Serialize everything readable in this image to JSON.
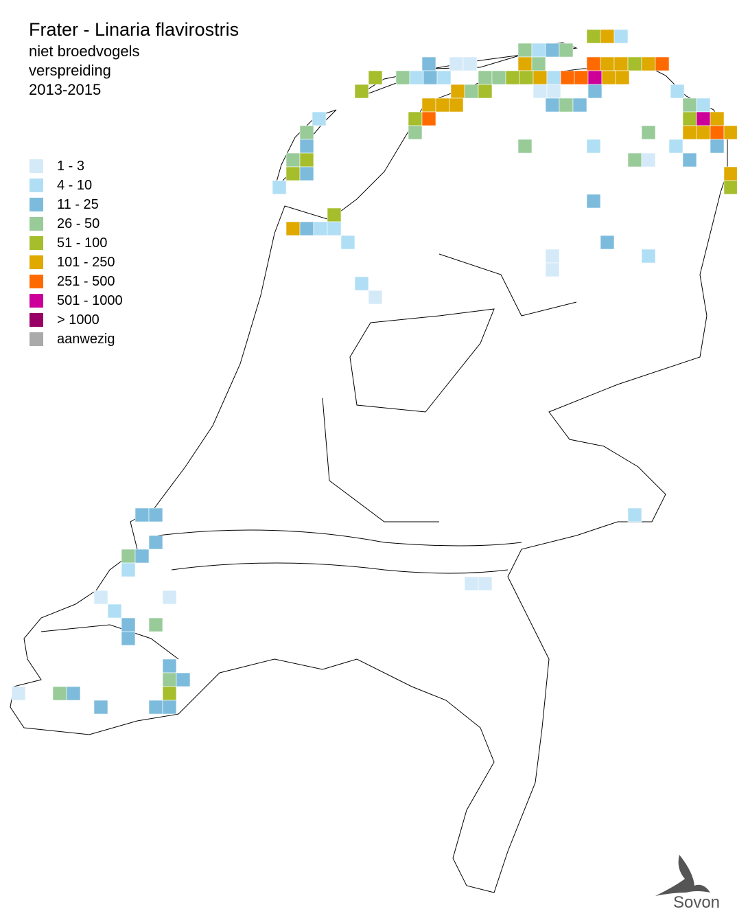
{
  "header": {
    "title": "Frater - Linaria flavirostris",
    "lines": [
      "niet broedvogels",
      "verspreiding",
      "2013-2015"
    ]
  },
  "legend": [
    {
      "label": "1 - 3",
      "color": "#d4eaf8"
    },
    {
      "label": "4 - 10",
      "color": "#b0dff5"
    },
    {
      "label": "11 - 25",
      "color": "#7dbbdc"
    },
    {
      "label": "26 - 50",
      "color": "#98cb98"
    },
    {
      "label": "51 - 100",
      "color": "#a6bd2c"
    },
    {
      "label": "101 - 250",
      "color": "#dfa900"
    },
    {
      "label": "251 - 500",
      "color": "#ff6a00"
    },
    {
      "label": "501 - 1000",
      "color": "#cc0099"
    },
    {
      "label": "> 1000",
      "color": "#990066"
    },
    {
      "label": "aanwezig",
      "color": "#aaaaaa"
    }
  ],
  "logo": "Sovon"
}
